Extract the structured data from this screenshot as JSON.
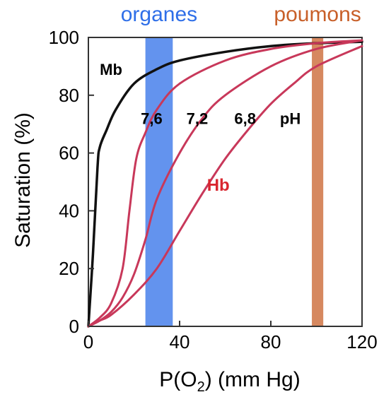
{
  "chart_data": {
    "type": "line",
    "xlabel": "P(O",
    "xlabel_sub": "2",
    "xlabel_suffix": ")  (mm Hg)",
    "ylabel": "Saturation (%)",
    "xlim": [
      0,
      120
    ],
    "ylim": [
      0,
      100
    ],
    "x_ticks": [
      "0",
      "40",
      "80",
      "120"
    ],
    "x_tick_values": [
      0,
      40,
      80,
      120
    ],
    "y_ticks": [
      "0",
      "20",
      "40",
      "60",
      "80",
      "100"
    ],
    "y_tick_values": [
      0,
      20,
      40,
      60,
      80,
      100
    ],
    "grid": false,
    "bands": [
      {
        "label": "organes",
        "x_range": [
          25,
          37
        ],
        "color": "#2f6fe8"
      },
      {
        "label": "poumons",
        "x_range": [
          98,
          103
        ],
        "color": "#c8602a"
      }
    ],
    "series": [
      {
        "key": "mb",
        "color": "#111111",
        "points": [
          [
            0,
            0
          ],
          [
            2,
            25
          ],
          [
            4,
            55
          ],
          [
            5,
            62
          ],
          [
            8,
            68
          ],
          [
            12,
            75
          ],
          [
            20,
            84
          ],
          [
            30,
            89
          ],
          [
            40,
            92
          ],
          [
            60,
            95
          ],
          [
            80,
            97
          ],
          [
            100,
            98
          ],
          [
            120,
            98.5
          ]
        ]
      },
      {
        "key": "hb76",
        "color": "#c8385a",
        "points": [
          [
            0,
            0
          ],
          [
            5,
            3
          ],
          [
            10,
            8
          ],
          [
            15,
            20
          ],
          [
            18,
            40
          ],
          [
            21,
            58
          ],
          [
            25,
            67
          ],
          [
            30,
            75
          ],
          [
            40,
            84
          ],
          [
            60,
            92
          ],
          [
            80,
            96
          ],
          [
            100,
            98
          ],
          [
            120,
            99
          ]
        ]
      },
      {
        "key": "hb72",
        "color": "#c8385a",
        "points": [
          [
            0,
            0
          ],
          [
            5,
            2
          ],
          [
            10,
            5
          ],
          [
            15,
            10
          ],
          [
            20,
            18
          ],
          [
            25,
            30
          ],
          [
            30,
            44
          ],
          [
            40,
            60
          ],
          [
            50,
            72
          ],
          [
            60,
            80
          ],
          [
            80,
            90
          ],
          [
            100,
            96
          ],
          [
            120,
            99
          ]
        ]
      },
      {
        "key": "hb68",
        "color": "#c8385a",
        "points": [
          [
            0,
            0
          ],
          [
            5,
            2
          ],
          [
            10,
            4
          ],
          [
            20,
            11
          ],
          [
            30,
            20
          ],
          [
            40,
            33
          ],
          [
            50,
            46
          ],
          [
            60,
            58
          ],
          [
            70,
            68
          ],
          [
            80,
            77
          ],
          [
            90,
            84
          ],
          [
            100,
            90
          ],
          [
            120,
            97
          ]
        ]
      }
    ],
    "annotations": [
      {
        "key": "mb",
        "text": "Mb",
        "x": 5,
        "y": 87,
        "color": "#000000"
      },
      {
        "key": "ph76",
        "text": "7,6",
        "x": 23,
        "y": 70,
        "color": "#000000"
      },
      {
        "key": "ph72",
        "text": "7,2",
        "x": 43,
        "y": 70,
        "color": "#000000"
      },
      {
        "key": "ph68",
        "text": "6,8",
        "x": 64,
        "y": 70,
        "color": "#000000"
      },
      {
        "key": "ph",
        "text": "pH",
        "x": 84,
        "y": 70,
        "color": "#000000"
      },
      {
        "key": "hb",
        "text": "Hb",
        "x": 52,
        "y": 47,
        "color": "#d9262f"
      }
    ]
  }
}
